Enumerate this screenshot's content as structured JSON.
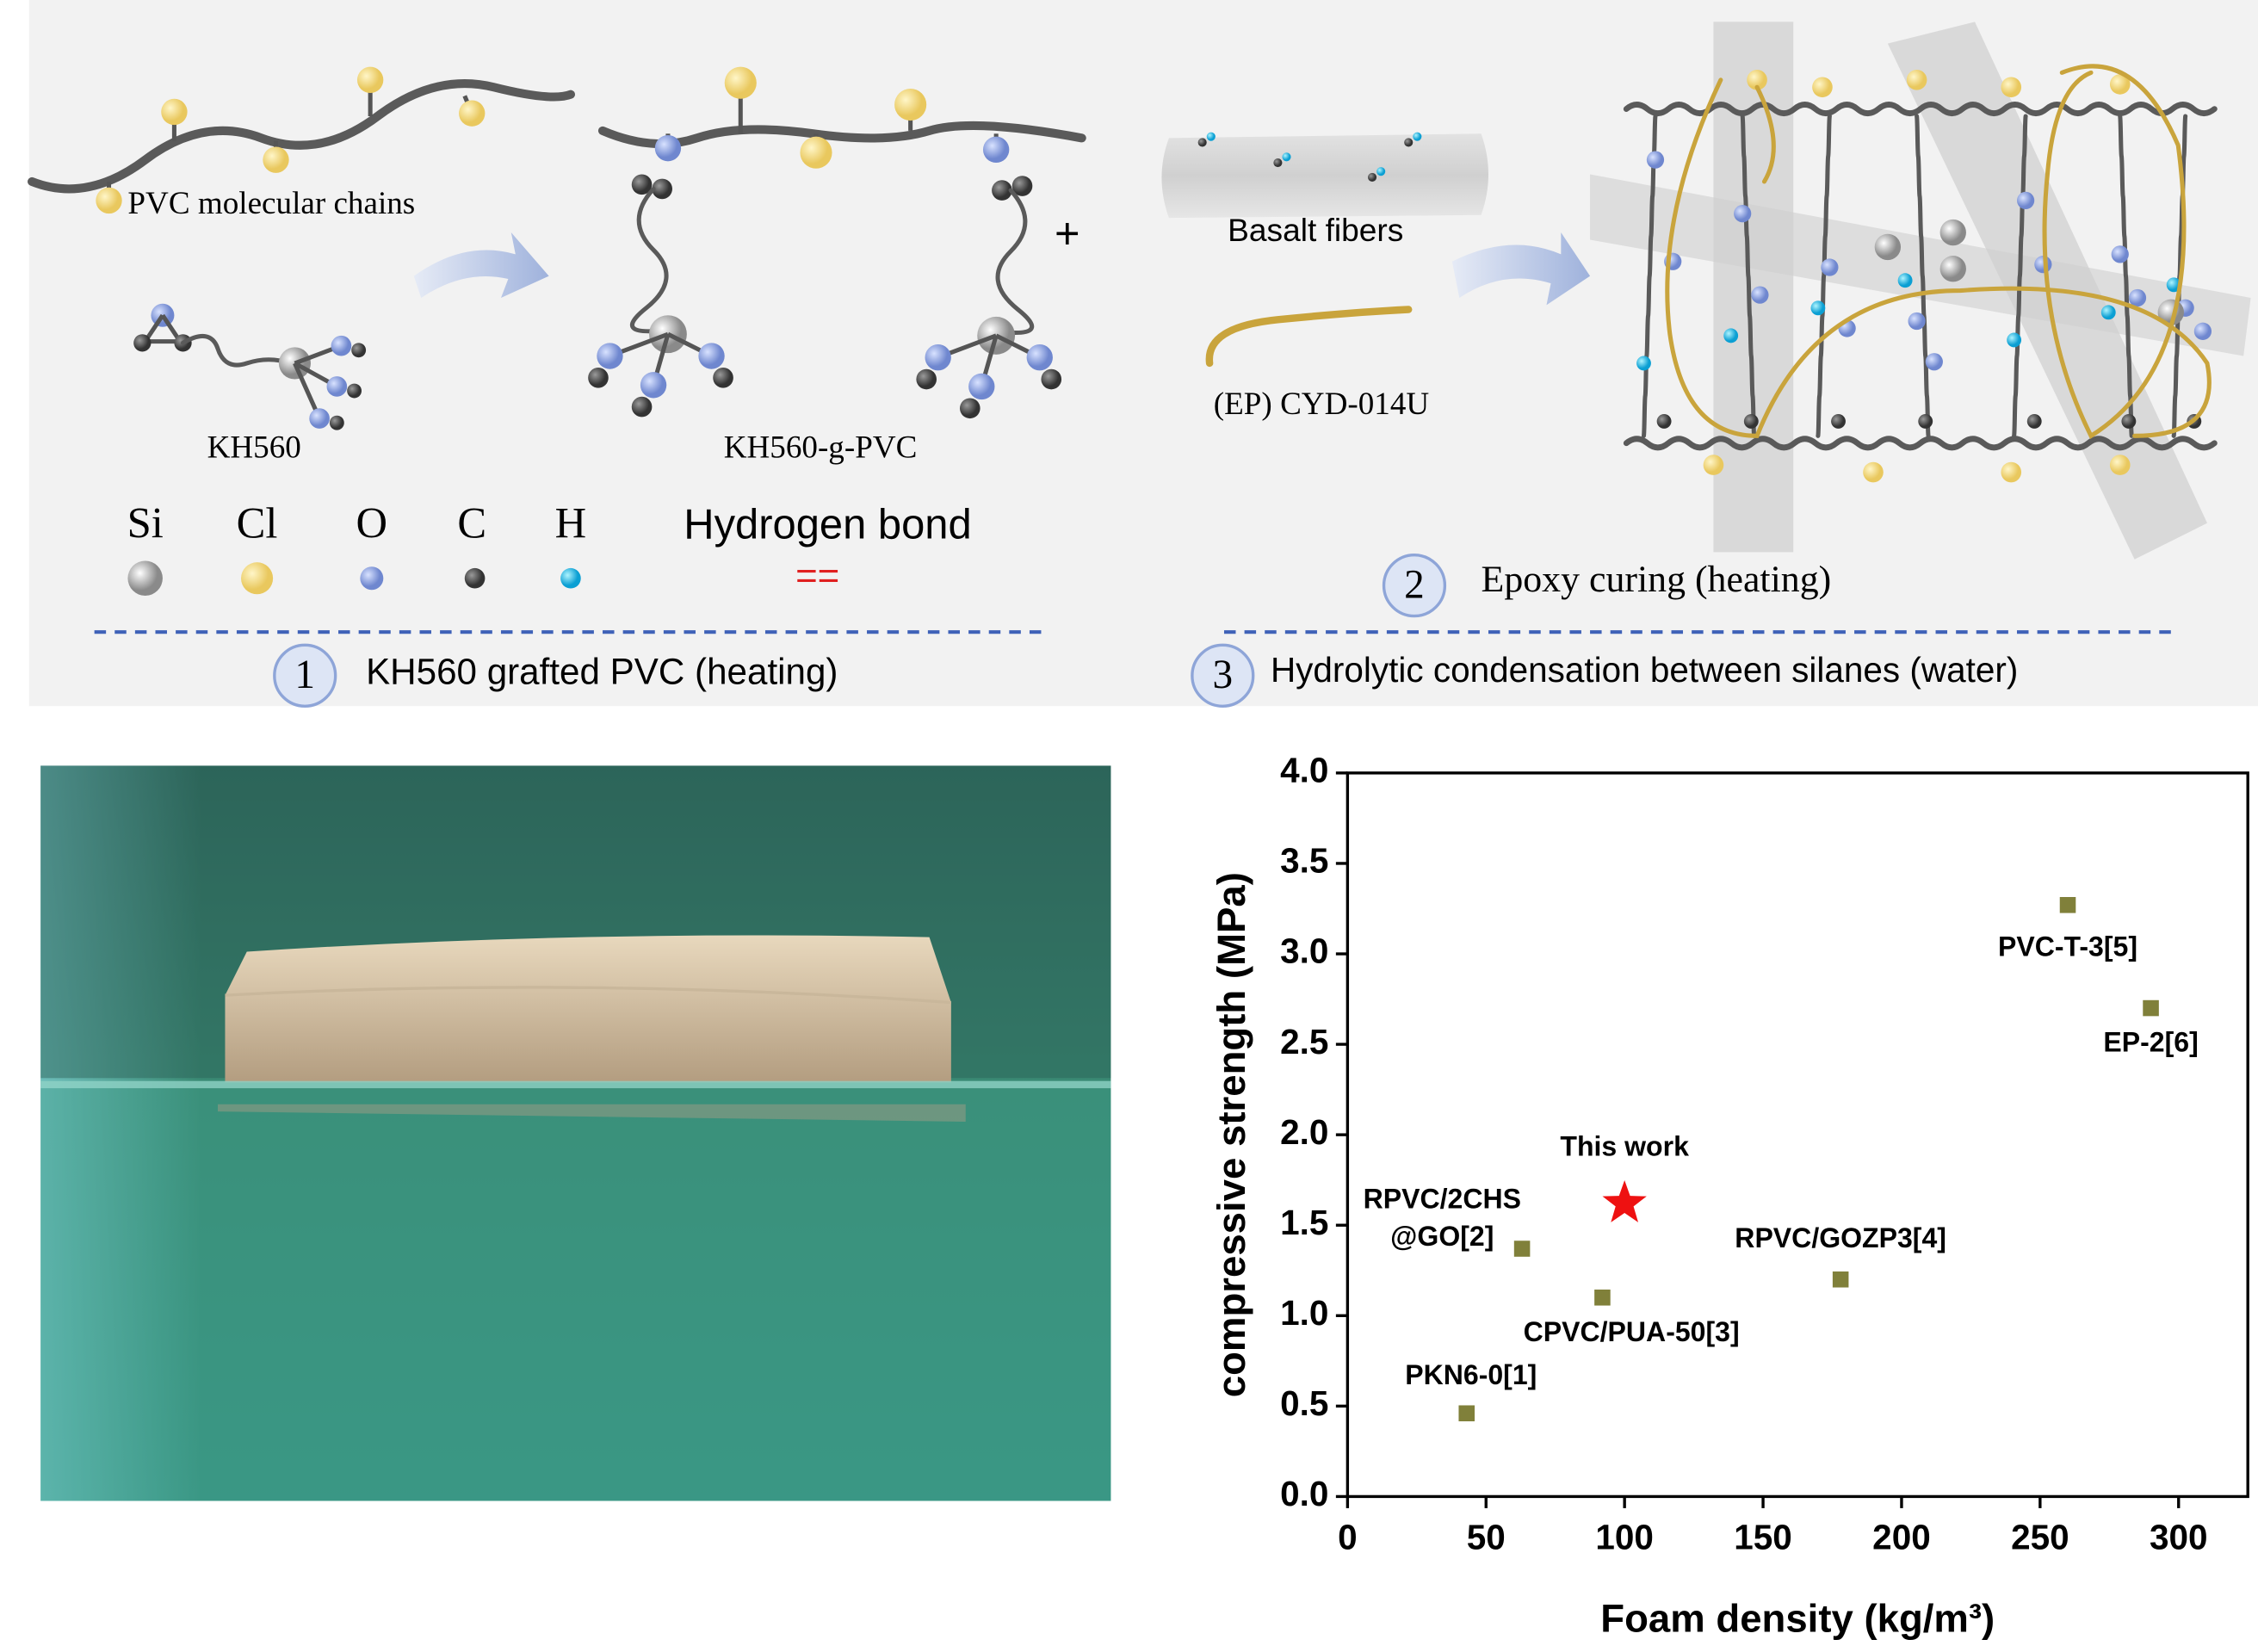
{
  "diagram": {
    "pvc_chain": "PVC molecular chains",
    "kh560": "KH560",
    "kh560_g_pvc": "KH560-g-PVC",
    "plus": "+",
    "basalt": "Basalt fibers",
    "epoxy": "(EP) CYD-014U",
    "legend": [
      "Si",
      "Cl",
      "O",
      "C",
      "H",
      "Hydrogen bond"
    ],
    "hbond_symbol": "==",
    "steps": [
      {
        "number": "1",
        "text": "KH560 grafted PVC (heating)"
      },
      {
        "number": "2",
        "text": "Epoxy curing (heating)"
      },
      {
        "number": "3",
        "text": "Hydrolytic condensation between silanes (water)"
      }
    ]
  },
  "chart_data": {
    "type": "scatter",
    "x_label": "Foam density (kg/m³)",
    "y_label": "compressive strength (MPa)",
    "xlim": [
      0,
      325
    ],
    "xticks": [
      0,
      50,
      100,
      150,
      200,
      250,
      300
    ],
    "ylim": [
      0,
      4
    ],
    "yticks": [
      {
        "value": 0,
        "label": "0.0"
      },
      {
        "value": 0.5,
        "label": "0.5"
      },
      {
        "value": 1,
        "label": "1.0"
      },
      {
        "value": 1.5,
        "label": "1.5"
      },
      {
        "value": 2,
        "label": "2.0"
      },
      {
        "value": 2.5,
        "label": "2.5"
      },
      {
        "value": 3,
        "label": "3.0"
      },
      {
        "value": 3.5,
        "label": "3.5"
      },
      {
        "value": 4,
        "label": "4.0"
      }
    ],
    "series": [
      {
        "marker": "square",
        "color": "#80803a",
        "x": [
          43,
          63,
          92,
          178,
          260,
          290
        ],
        "values": [
          0.46,
          1.37,
          1.1,
          1.2,
          3.27,
          2.7
        ],
        "labels": [
          [
            "PKN6-0[1]"
          ],
          [
            "RPVC/2CHS",
            "@GO[2]"
          ],
          [
            "CPVC/PUA-50[3]"
          ],
          [
            "RPVC/GOZP3[4]"
          ],
          [
            "PVC-T-3[5]"
          ],
          [
            "EP-2[6]"
          ]
        ]
      },
      {
        "marker": "star",
        "color": "#ee1111",
        "x": [
          100
        ],
        "values": [
          1.62
        ],
        "labels": [
          [
            "This work"
          ]
        ]
      }
    ]
  }
}
